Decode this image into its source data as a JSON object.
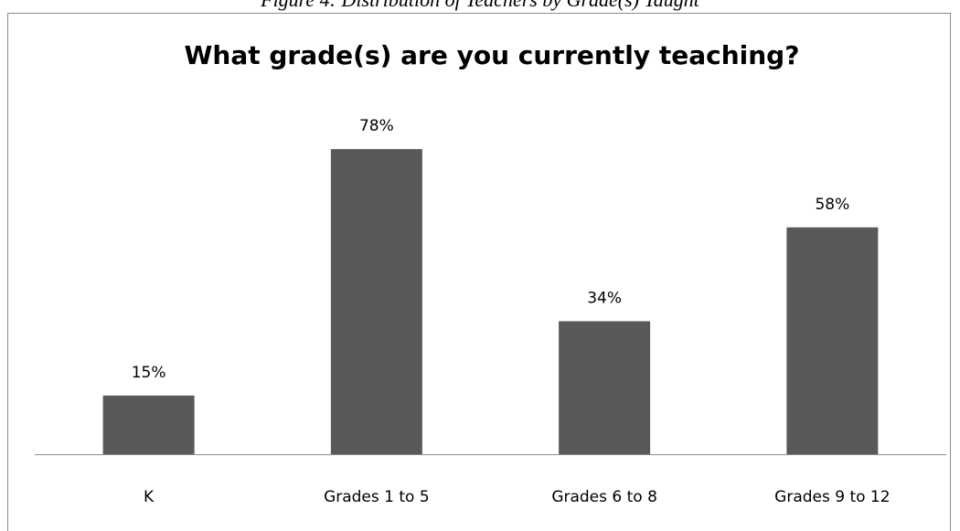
{
  "caption": "Figure 4: Distribution of Teachers by Grade(s) Taught",
  "chart_data": {
    "type": "bar",
    "title": "What grade(s) are you currently teaching?",
    "categories": [
      "K",
      "Grades 1 to 5",
      "Grades 6 to 8",
      "Grades 9 to 12"
    ],
    "values": [
      15,
      78,
      34,
      58
    ],
    "value_labels": [
      "15%",
      "78%",
      "34%",
      "58%"
    ],
    "color": "#595959"
  }
}
